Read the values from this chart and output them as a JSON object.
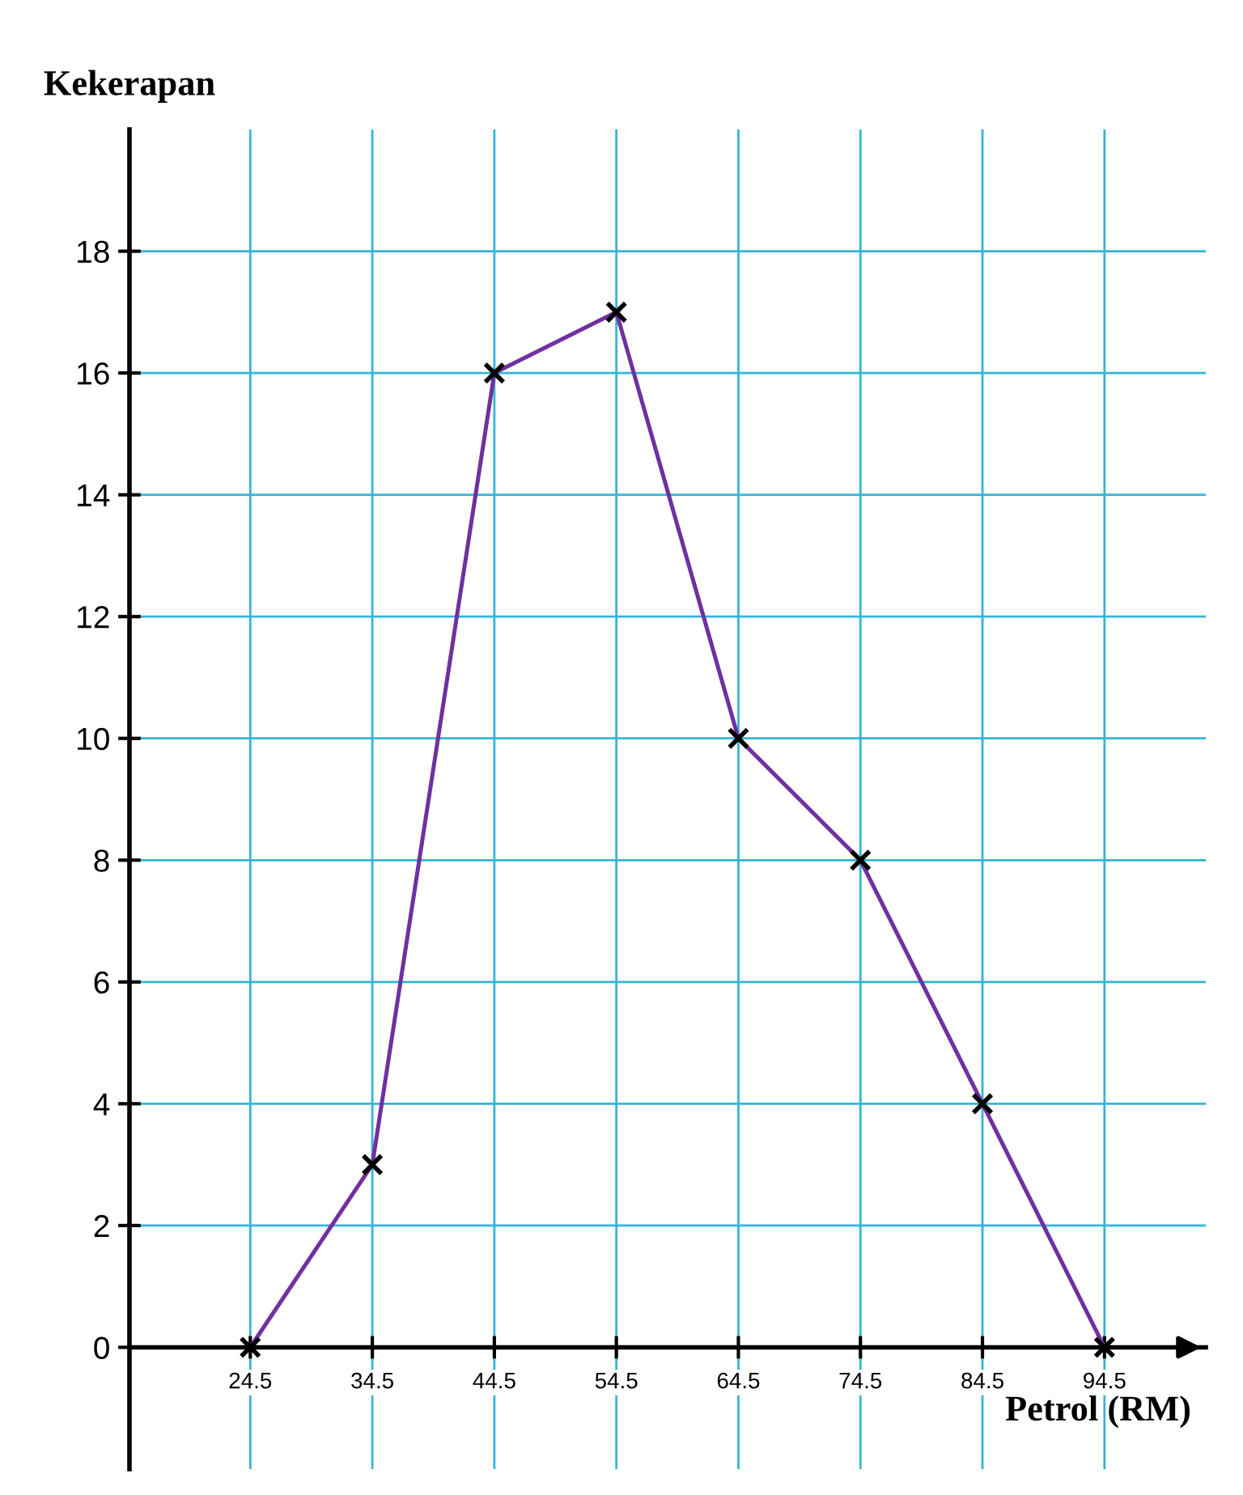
{
  "chart_data": {
    "type": "line",
    "xlabel": "Petrol (RM)",
    "ylabel": "Kekerapan",
    "x": [
      24.5,
      34.5,
      44.5,
      54.5,
      64.5,
      74.5,
      84.5,
      94.5
    ],
    "series": [
      {
        "color": "#7030a0",
        "values": [
          0,
          3,
          16,
          17,
          10,
          8,
          4,
          0
        ]
      }
    ],
    "marker": "cross",
    "line_style": "solid",
    "xlim": [
      14.6,
      102.8
    ],
    "xticks": [
      24.5,
      34.5,
      44.5,
      54.5,
      64.5,
      74.5,
      84.5,
      94.5
    ],
    "ylim": [
      -2,
      20
    ],
    "yticks": [
      0,
      2,
      4,
      6,
      8,
      10,
      12,
      14,
      16,
      18
    ],
    "grid": true
  }
}
